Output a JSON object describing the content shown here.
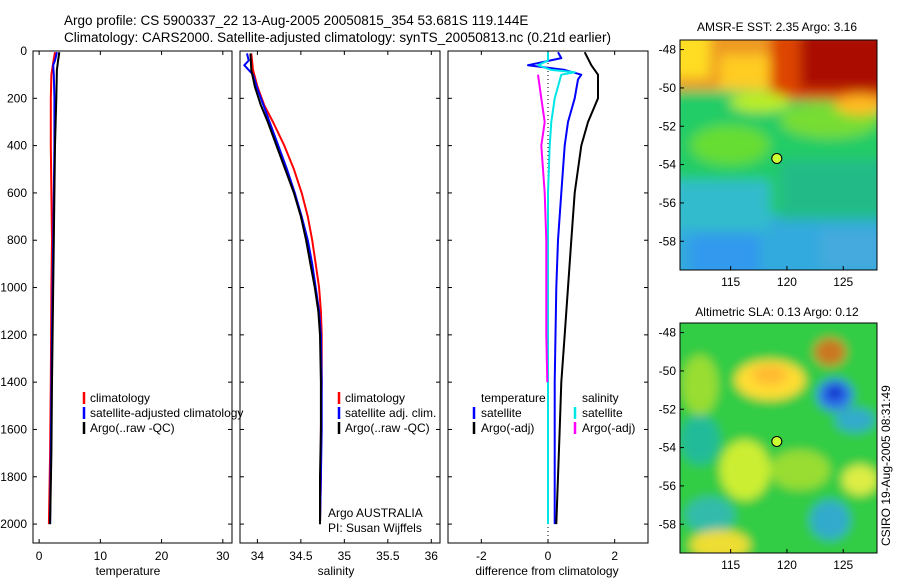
{
  "header": {
    "line1": "Argo profile: CS 5900337_22 13-Aug-2005 20050815_354 53.681S 119.144E",
    "line2": "Climatology: CARS2000. Satellite-adjusted climatology: synTS_20050813.nc (0.21d earlier)"
  },
  "side_label": "CSIRO 19-Aug-2005 08:31:49",
  "colors": {
    "red": "#ff0000",
    "blue": "#0000ff",
    "black": "#000000",
    "cyan": "#00e5e5",
    "magenta": "#ff00ff",
    "marker": "#ccff33"
  },
  "chart_data": [
    {
      "type": "line",
      "name": "temperature-panel",
      "xlabel": "temperature",
      "ylabel": "",
      "xlim": [
        -1,
        31.5
      ],
      "ylim": [
        2080,
        0
      ],
      "xticks": [
        0,
        10,
        20,
        30
      ],
      "yticks": [
        0,
        200,
        400,
        600,
        800,
        1000,
        1200,
        1400,
        1600,
        1800,
        2000
      ],
      "series": [
        {
          "name": "climatology",
          "color": "#ff0000",
          "points": [
            [
              2.6,
              5
            ],
            [
              2.3,
              50
            ],
            [
              2.0,
              100
            ],
            [
              1.9,
              200
            ],
            [
              1.9,
              400
            ],
            [
              2.0,
              600
            ],
            [
              2.1,
              800
            ],
            [
              2.0,
              1000
            ],
            [
              1.9,
              1400
            ],
            [
              1.8,
              1700
            ],
            [
              1.6,
              2000
            ]
          ]
        },
        {
          "name": "satellite-adjusted climatology",
          "color": "#0000ff",
          "points": [
            [
              2.9,
              5
            ],
            [
              2.6,
              40
            ],
            [
              2.3,
              60
            ],
            [
              2.4,
              100
            ],
            [
              2.5,
              200
            ],
            [
              2.5,
              400
            ],
            [
              2.4,
              600
            ],
            [
              2.3,
              800
            ],
            [
              2.2,
              1000
            ],
            [
              2.0,
              1400
            ],
            [
              1.9,
              1700
            ],
            [
              1.8,
              2000
            ]
          ]
        },
        {
          "name": "Argo(..raw -QC)",
          "color": "#000000",
          "points": [
            [
              3.3,
              5
            ],
            [
              3.1,
              40
            ],
            [
              2.9,
              80
            ],
            [
              2.8,
              200
            ],
            [
              2.6,
              400
            ],
            [
              2.5,
              600
            ],
            [
              2.4,
              800
            ],
            [
              2.3,
              1000
            ],
            [
              2.1,
              1400
            ],
            [
              2.0,
              1700
            ],
            [
              1.8,
              2000
            ]
          ]
        }
      ],
      "legend": [
        "climatology",
        "satellite-adjusted climatology",
        "Argo(..raw -QC)"
      ]
    },
    {
      "type": "line",
      "name": "salinity-panel",
      "xlabel": "salinity",
      "xlim": [
        33.8,
        36.1
      ],
      "ylim": [
        2080,
        0
      ],
      "xticks": [
        34,
        34.5,
        35,
        35.5,
        36
      ],
      "series": [
        {
          "name": "climatology",
          "color": "#ff0000",
          "points": [
            [
              33.93,
              10
            ],
            [
              33.95,
              80
            ],
            [
              34.0,
              150
            ],
            [
              34.08,
              230
            ],
            [
              34.18,
              300
            ],
            [
              34.31,
              400
            ],
            [
              34.42,
              500
            ],
            [
              34.51,
              600
            ],
            [
              34.58,
              700
            ],
            [
              34.63,
              800
            ],
            [
              34.67,
              900
            ],
            [
              34.71,
              1000
            ],
            [
              34.73,
              1100
            ],
            [
              34.74,
              1200
            ],
            [
              34.74,
              1400
            ],
            [
              34.73,
              1600
            ],
            [
              34.73,
              1800
            ],
            [
              34.72,
              2000
            ]
          ]
        },
        {
          "name": "satellite adj. clim.",
          "color": "#0000ff",
          "points": [
            [
              33.88,
              10
            ],
            [
              33.9,
              40
            ],
            [
              33.85,
              60
            ],
            [
              33.95,
              100
            ],
            [
              34.0,
              160
            ],
            [
              34.07,
              230
            ],
            [
              34.14,
              300
            ],
            [
              34.24,
              400
            ],
            [
              34.34,
              500
            ],
            [
              34.43,
              600
            ],
            [
              34.51,
              700
            ],
            [
              34.58,
              800
            ],
            [
              34.63,
              900
            ],
            [
              34.67,
              1000
            ],
            [
              34.71,
              1100
            ],
            [
              34.73,
              1200
            ],
            [
              34.74,
              1400
            ],
            [
              34.74,
              1600
            ],
            [
              34.73,
              1800
            ],
            [
              34.72,
              2000
            ]
          ]
        },
        {
          "name": "Argo(..raw -QC)",
          "color": "#000000",
          "points": [
            [
              33.92,
              10
            ],
            [
              33.93,
              80
            ],
            [
              33.97,
              150
            ],
            [
              34.04,
              230
            ],
            [
              34.12,
              300
            ],
            [
              34.22,
              400
            ],
            [
              34.32,
              500
            ],
            [
              34.42,
              600
            ],
            [
              34.5,
              700
            ],
            [
              34.56,
              800
            ],
            [
              34.61,
              900
            ],
            [
              34.66,
              1000
            ],
            [
              34.7,
              1100
            ],
            [
              34.72,
              1200
            ],
            [
              34.73,
              1400
            ],
            [
              34.73,
              1600
            ],
            [
              34.72,
              1800
            ],
            [
              34.72,
              2000
            ]
          ]
        }
      ],
      "legend": [
        "climatology",
        "satellite adj. clim.",
        "Argo(..raw -QC)"
      ],
      "annotations": [
        "Argo AUSTRALIA",
        "PI: Susan Wijffels"
      ]
    },
    {
      "type": "line",
      "name": "difference-panel",
      "xlabel": "difference from climatology",
      "xlim": [
        -3,
        3
      ],
      "ylim": [
        2080,
        0
      ],
      "xticks": [
        -2,
        0,
        2
      ],
      "series": [
        {
          "name": "temperature satellite",
          "color": "#0000ff",
          "points": [
            [
              0.3,
              5
            ],
            [
              0.4,
              30
            ],
            [
              -0.6,
              60
            ],
            [
              0.5,
              80
            ],
            [
              1.0,
              100
            ],
            [
              0.9,
              120
            ],
            [
              0.8,
              200
            ],
            [
              0.6,
              300
            ],
            [
              0.5,
              400
            ],
            [
              0.4,
              600
            ],
            [
              0.3,
              800
            ],
            [
              0.25,
              1000
            ],
            [
              0.2,
              1400
            ],
            [
              0.2,
              1800
            ],
            [
              0.2,
              2000
            ]
          ]
        },
        {
          "name": "temperature Argo(-adj)",
          "color": "#000000",
          "points": [
            [
              1.1,
              5
            ],
            [
              1.3,
              60
            ],
            [
              1.5,
              100
            ],
            [
              1.5,
              200
            ],
            [
              1.2,
              300
            ],
            [
              1.0,
              400
            ],
            [
              0.8,
              600
            ],
            [
              0.7,
              800
            ],
            [
              0.6,
              1000
            ],
            [
              0.5,
              1200
            ],
            [
              0.4,
              1400
            ],
            [
              0.35,
              1600
            ],
            [
              0.3,
              1800
            ],
            [
              0.25,
              2000
            ]
          ]
        },
        {
          "name": "salinity satellite",
          "color": "#00e5e5",
          "points": [
            [
              0.0,
              5
            ],
            [
              0.0,
              40
            ],
            [
              -0.3,
              60
            ],
            [
              0.1,
              80
            ],
            [
              0.8,
              90
            ],
            [
              0.4,
              100
            ],
            [
              0.2,
              200
            ],
            [
              0.1,
              300
            ],
            [
              0.05,
              400
            ],
            [
              0.0,
              600
            ],
            [
              0.0,
              1000
            ],
            [
              0.0,
              1400
            ],
            [
              0.0,
              2000
            ]
          ]
        },
        {
          "name": "salinity Argo(-adj)",
          "color": "#ff00ff",
          "points": [
            [
              -0.3,
              100
            ],
            [
              -0.2,
              200
            ],
            [
              -0.1,
              300
            ],
            [
              -0.2,
              400
            ],
            [
              -0.1,
              600
            ],
            [
              -0.05,
              800
            ],
            [
              -0.05,
              1200
            ],
            [
              -0.02,
              1400
            ]
          ]
        }
      ],
      "legend_left_title": "temperature",
      "legend_right_title": "salinity",
      "legend": [
        "satellite",
        "Argo(-adj)",
        "satellite",
        "Argo(-adj)"
      ]
    },
    {
      "type": "heatmap",
      "name": "sst-map",
      "title": "AMSR-E SST: 2.35 Argo: 3.16",
      "xlim": [
        110.5,
        128
      ],
      "ylim": [
        -59.5,
        -47.5
      ],
      "xticks": [
        115,
        120,
        125
      ],
      "yticks": [
        -48,
        -50,
        -52,
        -54,
        -56,
        -58
      ],
      "marker": [
        119.1,
        -53.68
      ]
    },
    {
      "type": "heatmap",
      "name": "sla-map",
      "title": "Altimetric SLA: 0.13 Argo: 0.12",
      "xlim": [
        110.5,
        128
      ],
      "ylim": [
        -59.5,
        -47.5
      ],
      "xticks": [
        115,
        120,
        125
      ],
      "yticks": [
        -48,
        -50,
        -52,
        -54,
        -56,
        -58
      ],
      "marker": [
        119.1,
        -53.68
      ]
    }
  ]
}
